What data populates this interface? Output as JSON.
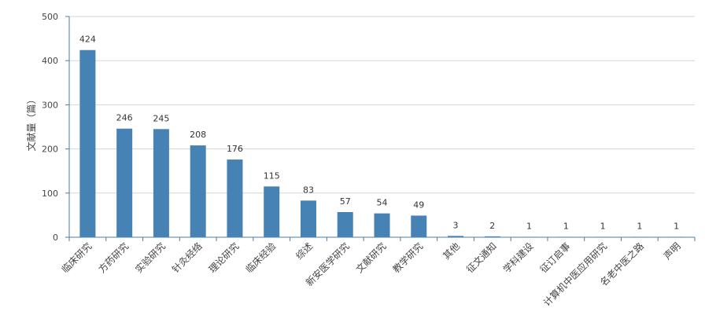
{
  "chart_data": {
    "type": "bar",
    "ylabel": "文献量（篇）",
    "ylim": [
      0,
      500
    ],
    "yticks": [
      0,
      100,
      200,
      300,
      400,
      500
    ],
    "grid": true,
    "bar_color": "#4682b4",
    "categories": [
      "临床研究",
      "方药研究",
      "实验研究",
      "针灸经络",
      "理论研究",
      "临床经验",
      "综述",
      "新安医学研究",
      "文献研究",
      "教学研究",
      "其他",
      "征文通知",
      "学科建设",
      "征订启事",
      "计算机中医应用研究",
      "名老中医之路",
      "声明"
    ],
    "values": [
      424,
      246,
      245,
      208,
      176,
      115,
      83,
      57,
      54,
      49,
      3,
      2,
      1,
      1,
      1,
      1,
      1
    ]
  }
}
